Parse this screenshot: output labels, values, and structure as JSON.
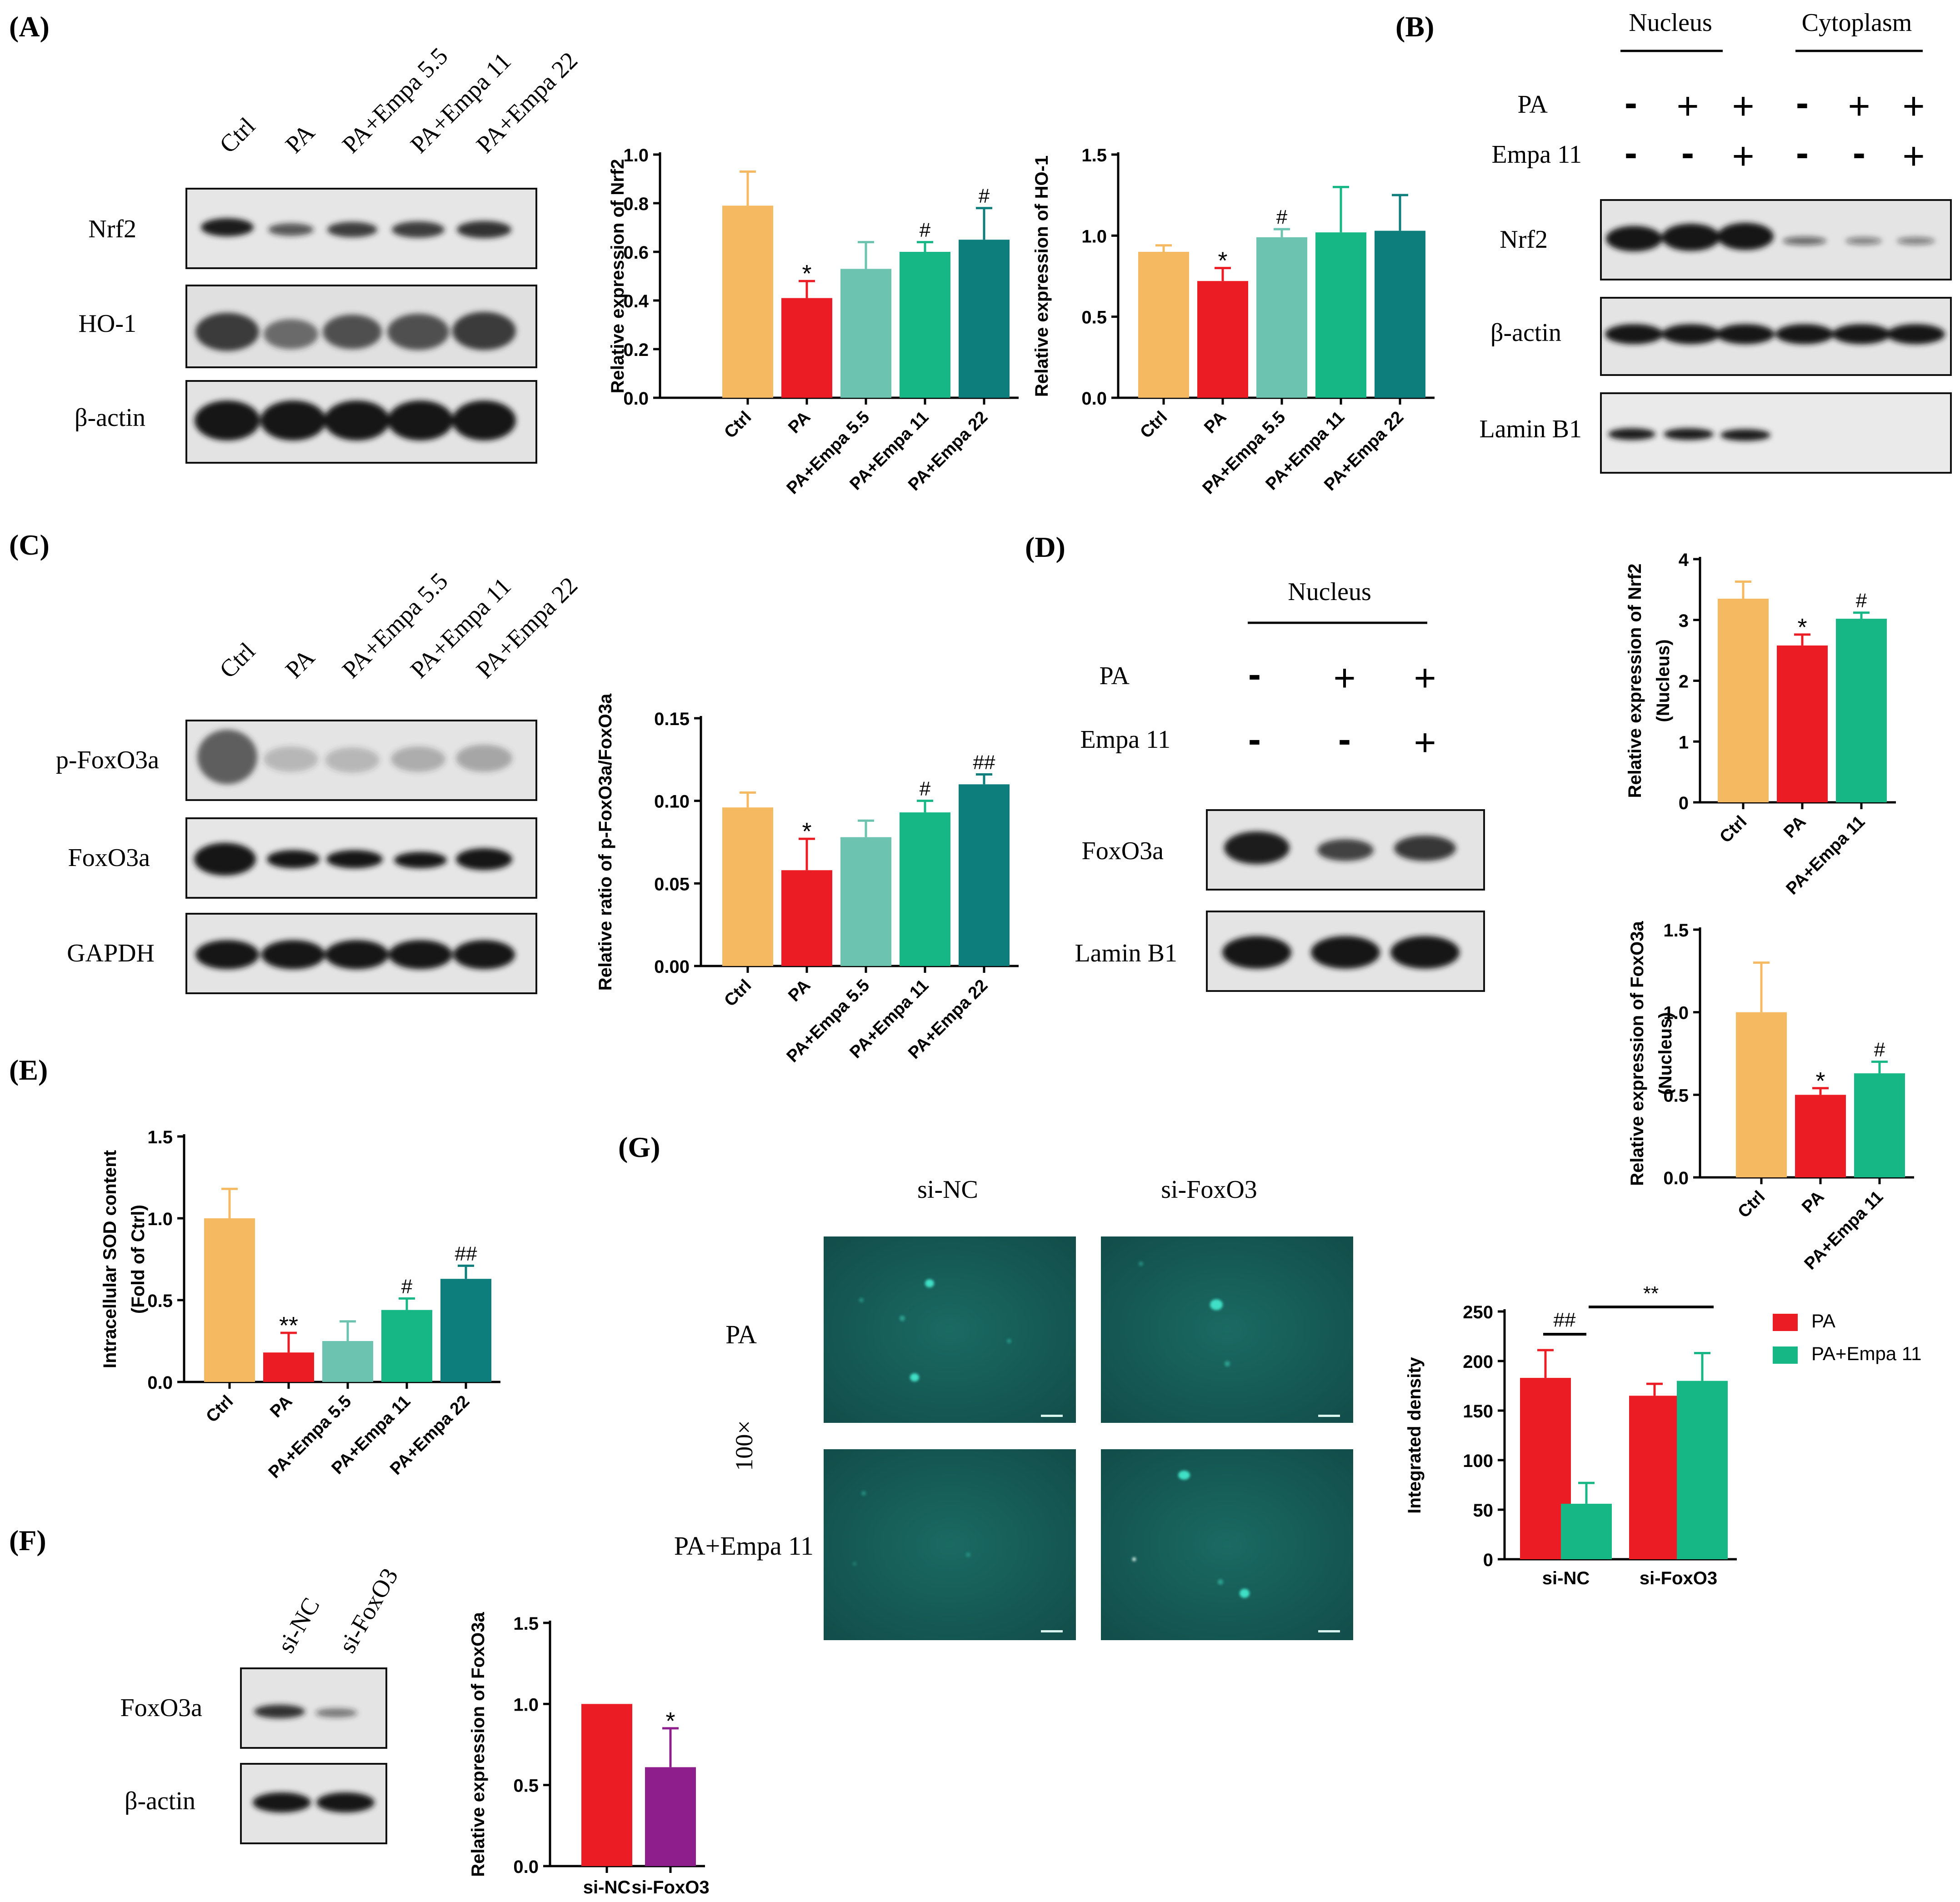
{
  "panel_letters": [
    "(A)",
    "(B)",
    "(C)",
    "(D)",
    "(E)",
    "(F)",
    "(G)"
  ],
  "colors": {
    "ctrl": "#F5B961",
    "pa": "#EC1C24",
    "empa55": "#6CC3AF",
    "empa11": "#17B685",
    "empa22": "#0D7E7C",
    "sifoxo3": "#8E1E8C",
    "blot_band": "#1e1e1e",
    "micro_bg": "#145752"
  },
  "blots": {
    "A": {
      "lanes": [
        "Ctrl",
        "PA",
        "PA+Empa 5.5",
        "PA+Empa 11",
        "PA+Empa 22"
      ],
      "rows": [
        "Nrf2",
        "HO-1",
        "β-actin"
      ]
    },
    "B": {
      "group_labels": [
        "Nucleus",
        "Cytoplasm"
      ],
      "treatment_names": [
        "PA",
        "Empa 11"
      ],
      "pa_signs": [
        "-",
        "+",
        "+",
        "-",
        "+",
        "+"
      ],
      "empa_signs": [
        "-",
        "-",
        "+",
        "-",
        "-",
        "+"
      ],
      "rows": [
        "Nrf2",
        "β-actin",
        "Lamin B1"
      ]
    },
    "C": {
      "lanes": [
        "Ctrl",
        "PA",
        "PA+Empa 5.5",
        "PA+Empa 11",
        "PA+Empa 22"
      ],
      "rows": [
        "p-FoxO3a",
        "FoxO3a",
        "GAPDH"
      ]
    },
    "D": {
      "group_label": "Nucleus",
      "treatment_names": [
        "PA",
        "Empa 11"
      ],
      "pa_signs": [
        "-",
        "+",
        "+"
      ],
      "empa_signs": [
        "-",
        "-",
        "+"
      ],
      "rows": [
        "FoxO3a",
        "Lamin B1"
      ]
    },
    "F": {
      "lanes": [
        "si-NC",
        "si-FoxO3"
      ],
      "rows": [
        "FoxO3a",
        "β-actin"
      ]
    }
  },
  "microscopy": {
    "columns": [
      "si-NC",
      "si-FoxO3"
    ],
    "rows": [
      "PA",
      "PA+Empa 11"
    ],
    "magnification": "100×"
  },
  "chart_data": [
    {
      "id": "A-Nrf2",
      "type": "bar",
      "categories": [
        "Ctrl",
        "PA",
        "PA+Empa 5.5",
        "PA+Empa 11",
        "PA+Empa 22"
      ],
      "values": [
        0.79,
        0.41,
        0.53,
        0.6,
        0.65
      ],
      "errors": [
        0.14,
        0.07,
        0.11,
        0.04,
        0.13
      ],
      "annotations": [
        "",
        "*",
        "",
        "#",
        "#"
      ],
      "ylabel": "Relative expression of Nrf2",
      "ylim": [
        0,
        1.0
      ],
      "yticks": [
        "0.0",
        "0.2",
        "0.4",
        "0.6",
        "0.8",
        "1.0"
      ]
    },
    {
      "id": "A-HO1",
      "type": "bar",
      "categories": [
        "Ctrl",
        "PA",
        "PA+Empa 5.5",
        "PA+Empa 11",
        "PA+Empa 22"
      ],
      "values": [
        0.9,
        0.72,
        0.99,
        1.02,
        1.03
      ],
      "errors": [
        0.04,
        0.08,
        0.05,
        0.28,
        0.22
      ],
      "annotations": [
        "",
        "*",
        "#",
        "",
        ""
      ],
      "ylabel": "Relative expression of HO-1",
      "ylim": [
        0,
        1.5
      ],
      "yticks": [
        "0.0",
        "0.5",
        "1.0",
        "1.5"
      ]
    },
    {
      "id": "C-pFoxO3a",
      "type": "bar",
      "categories": [
        "Ctrl",
        "PA",
        "PA+Empa 5.5",
        "PA+Empa 11",
        "PA+Empa 22"
      ],
      "values": [
        0.096,
        0.058,
        0.078,
        0.093,
        0.11
      ],
      "errors": [
        0.009,
        0.019,
        0.01,
        0.007,
        0.006
      ],
      "annotations": [
        "",
        "*",
        "",
        "#",
        "##"
      ],
      "ylabel": "Relative ratio of p-FoxO3a/FoxO3a",
      "ylim": [
        0,
        0.15
      ],
      "yticks": [
        "0.00",
        "0.05",
        "0.10",
        "0.15"
      ]
    },
    {
      "id": "D-Nrf2",
      "type": "bar",
      "categories": [
        "Ctrl",
        "PA",
        "PA+Empa 11"
      ],
      "values": [
        3.35,
        2.58,
        3.02
      ],
      "errors": [
        0.28,
        0.18,
        0.1
      ],
      "annotations": [
        "",
        "*",
        "#"
      ],
      "ylabel": [
        "Relative expression of Nrf2",
        "(Nucleus)"
      ],
      "ylim": [
        0,
        4
      ],
      "yticks": [
        "0",
        "1",
        "2",
        "3",
        "4"
      ]
    },
    {
      "id": "D-FoxO3a",
      "type": "bar",
      "categories": [
        "Ctrl",
        "PA",
        "PA+Empa 11"
      ],
      "values": [
        1.0,
        0.5,
        0.63
      ],
      "errors": [
        0.3,
        0.04,
        0.07
      ],
      "annotations": [
        "",
        "*",
        "#"
      ],
      "ylabel": [
        "Relative expression of FoxO3a",
        "(Nucleus)"
      ],
      "ylim": [
        0,
        1.5
      ],
      "yticks": [
        "0.0",
        "0.5",
        "1.0",
        "1.5"
      ]
    },
    {
      "id": "E-SOD",
      "type": "bar",
      "categories": [
        "Ctrl",
        "PA",
        "PA+Empa 5.5",
        "PA+Empa 11",
        "PA+Empa 22"
      ],
      "values": [
        1.0,
        0.18,
        0.25,
        0.44,
        0.63
      ],
      "errors": [
        0.18,
        0.12,
        0.12,
        0.07,
        0.08
      ],
      "annotations": [
        "",
        "**",
        "",
        "#",
        "##"
      ],
      "ylabel": [
        "Intracellular SOD content",
        "(Fold of Ctrl)"
      ],
      "ylim": [
        0,
        1.5
      ],
      "yticks": [
        "0.0",
        "0.5",
        "1.0",
        "1.5"
      ]
    },
    {
      "id": "F-FoxO3a",
      "type": "bar",
      "categories": [
        "si-NC",
        "si-FoxO3"
      ],
      "values": [
        1.0,
        0.61
      ],
      "errors": [
        0.0,
        0.24
      ],
      "annotations": [
        "",
        "*"
      ],
      "ylabel": "Relative expression of FoxO3a",
      "ylim": [
        0,
        1.5
      ],
      "yticks": [
        "0.0",
        "0.5",
        "1.0",
        "1.5"
      ]
    },
    {
      "id": "G-density",
      "type": "bar",
      "categories": [
        "si-NC",
        "si-FoxO3"
      ],
      "series": [
        {
          "name": "PA",
          "values": [
            183,
            165
          ],
          "errors": [
            28,
            12
          ]
        },
        {
          "name": "PA+Empa 11",
          "values": [
            56,
            180
          ],
          "errors": [
            21,
            28
          ]
        }
      ],
      "brackets": [
        "##",
        "**"
      ],
      "ylabel": "Integrated density",
      "ylim": [
        0,
        250
      ],
      "yticks": [
        "0",
        "50",
        "100",
        "150",
        "200",
        "250"
      ],
      "legend": "right"
    }
  ]
}
